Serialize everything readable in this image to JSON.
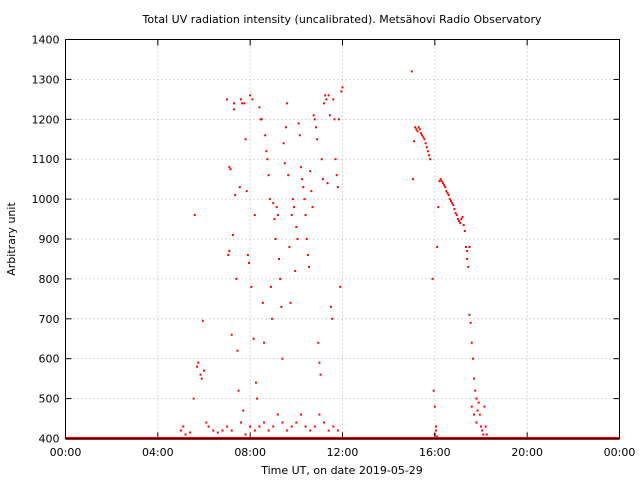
{
  "chart_data": {
    "type": "scatter",
    "title": "Total UV radiation intensity (uncalibrated). Metsähovi Radio Observatory",
    "xlabel": "Time UT, on date 2019-05-29",
    "ylabel": "Arbitrary unit",
    "xlim": [
      0,
      24
    ],
    "ylim": [
      400,
      1400
    ],
    "x_ticks": [
      0,
      4,
      8,
      12,
      16,
      20,
      24
    ],
    "x_tick_labels": [
      "00:00",
      "04:00",
      "08:00",
      "12:00",
      "16:00",
      "20:00",
      "00:00"
    ],
    "y_ticks": [
      400,
      500,
      600,
      700,
      800,
      900,
      1000,
      1100,
      1200,
      1300,
      1400
    ],
    "y_tick_labels": [
      "400",
      "500",
      "600",
      "700",
      "800",
      "900",
      "1000",
      "1100",
      "1200",
      "1300",
      "1400"
    ],
    "grid": true,
    "point_color": "#ff0000",
    "baseline": {
      "y": 400,
      "x_start": 0,
      "x_end": 24
    },
    "points": [
      [
        5.0,
        420
      ],
      [
        5.1,
        430
      ],
      [
        5.2,
        410
      ],
      [
        5.4,
        415
      ],
      [
        5.55,
        500
      ],
      [
        5.6,
        960
      ],
      [
        5.7,
        580
      ],
      [
        5.75,
        590
      ],
      [
        5.85,
        560
      ],
      [
        5.9,
        550
      ],
      [
        5.95,
        695
      ],
      [
        6.0,
        570
      ],
      [
        6.1,
        440
      ],
      [
        6.2,
        430
      ],
      [
        6.4,
        420
      ],
      [
        6.6,
        415
      ],
      [
        6.8,
        420
      ],
      [
        7.0,
        1250
      ],
      [
        7.05,
        860
      ],
      [
        7.1,
        870
      ],
      [
        7.1,
        1080
      ],
      [
        7.15,
        1075
      ],
      [
        7.2,
        660
      ],
      [
        7.25,
        910
      ],
      [
        7.3,
        1240
      ],
      [
        7.3,
        1225
      ],
      [
        7.35,
        1010
      ],
      [
        7.4,
        800
      ],
      [
        7.45,
        620
      ],
      [
        7.5,
        520
      ],
      [
        7.55,
        1030
      ],
      [
        7.6,
        1250
      ],
      [
        7.65,
        1240
      ],
      [
        7.7,
        470
      ],
      [
        7.75,
        1240
      ],
      [
        7.8,
        1150
      ],
      [
        7.85,
        1020
      ],
      [
        7.9,
        860
      ],
      [
        7.95,
        840
      ],
      [
        8.0,
        1260
      ],
      [
        8.05,
        780
      ],
      [
        8.1,
        1250
      ],
      [
        8.15,
        650
      ],
      [
        8.2,
        960
      ],
      [
        8.25,
        540
      ],
      [
        8.3,
        500
      ],
      [
        8.4,
        1230
      ],
      [
        8.45,
        1200
      ],
      [
        8.5,
        1200
      ],
      [
        8.55,
        740
      ],
      [
        8.6,
        640
      ],
      [
        8.65,
        1160
      ],
      [
        8.7,
        1120
      ],
      [
        8.75,
        1100
      ],
      [
        8.8,
        1060
      ],
      [
        8.85,
        1000
      ],
      [
        8.9,
        780
      ],
      [
        8.95,
        700
      ],
      [
        9.0,
        990
      ],
      [
        9.05,
        950
      ],
      [
        9.1,
        900
      ],
      [
        9.15,
        980
      ],
      [
        9.2,
        960
      ],
      [
        9.25,
        850
      ],
      [
        9.3,
        800
      ],
      [
        9.35,
        730
      ],
      [
        9.4,
        600
      ],
      [
        9.45,
        1140
      ],
      [
        9.5,
        1090
      ],
      [
        9.55,
        1180
      ],
      [
        9.6,
        1240
      ],
      [
        9.65,
        1060
      ],
      [
        9.7,
        880
      ],
      [
        9.75,
        740
      ],
      [
        9.8,
        960
      ],
      [
        9.85,
        1000
      ],
      [
        9.9,
        980
      ],
      [
        9.95,
        820
      ],
      [
        10.0,
        930
      ],
      [
        10.05,
        900
      ],
      [
        10.1,
        1190
      ],
      [
        10.15,
        1160
      ],
      [
        10.2,
        1080
      ],
      [
        10.25,
        1050
      ],
      [
        10.3,
        1030
      ],
      [
        10.35,
        1000
      ],
      [
        10.4,
        960
      ],
      [
        10.45,
        900
      ],
      [
        10.5,
        860
      ],
      [
        10.55,
        830
      ],
      [
        10.6,
        1070
      ],
      [
        10.65,
        1020
      ],
      [
        10.7,
        980
      ],
      [
        10.75,
        1210
      ],
      [
        10.8,
        1200
      ],
      [
        10.85,
        1180
      ],
      [
        10.9,
        1150
      ],
      [
        10.95,
        640
      ],
      [
        11.0,
        590
      ],
      [
        11.05,
        560
      ],
      [
        11.1,
        1100
      ],
      [
        11.15,
        1050
      ],
      [
        11.2,
        1240
      ],
      [
        11.25,
        1260
      ],
      [
        11.3,
        1250
      ],
      [
        11.35,
        1040
      ],
      [
        11.4,
        1260
      ],
      [
        11.45,
        1210
      ],
      [
        11.5,
        730
      ],
      [
        11.55,
        700
      ],
      [
        11.6,
        1250
      ],
      [
        11.65,
        1200
      ],
      [
        11.7,
        1100
      ],
      [
        11.75,
        1060
      ],
      [
        11.8,
        1030
      ],
      [
        11.85,
        1200
      ],
      [
        11.9,
        780
      ],
      [
        11.95,
        1270
      ],
      [
        12.0,
        1280
      ],
      [
        7.0,
        430
      ],
      [
        7.2,
        420
      ],
      [
        7.6,
        440
      ],
      [
        7.8,
        410
      ],
      [
        8.0,
        430
      ],
      [
        8.2,
        420
      ],
      [
        8.4,
        430
      ],
      [
        8.6,
        440
      ],
      [
        8.8,
        420
      ],
      [
        9.0,
        430
      ],
      [
        9.2,
        460
      ],
      [
        9.4,
        440
      ],
      [
        9.6,
        420
      ],
      [
        9.8,
        430
      ],
      [
        10.0,
        440
      ],
      [
        10.2,
        460
      ],
      [
        10.4,
        430
      ],
      [
        10.6,
        420
      ],
      [
        10.8,
        430
      ],
      [
        11.0,
        460
      ],
      [
        11.2,
        440
      ],
      [
        11.4,
        420
      ],
      [
        11.6,
        430
      ],
      [
        11.8,
        420
      ],
      [
        15.0,
        1320
      ],
      [
        15.05,
        1050
      ],
      [
        15.1,
        1145
      ],
      [
        15.15,
        1180
      ],
      [
        15.2,
        1175
      ],
      [
        15.25,
        1170
      ],
      [
        15.3,
        1180
      ],
      [
        15.35,
        1175
      ],
      [
        15.4,
        1165
      ],
      [
        15.45,
        1160
      ],
      [
        15.5,
        1155
      ],
      [
        15.55,
        1150
      ],
      [
        15.6,
        1140
      ],
      [
        15.65,
        1130
      ],
      [
        15.7,
        1120
      ],
      [
        15.75,
        1110
      ],
      [
        15.8,
        1100
      ],
      [
        15.9,
        800
      ],
      [
        15.95,
        520
      ],
      [
        16.0,
        480
      ],
      [
        16.05,
        420
      ],
      [
        16.1,
        880
      ],
      [
        16.15,
        980
      ],
      [
        16.2,
        1045
      ],
      [
        16.25,
        1050
      ],
      [
        16.3,
        1045
      ],
      [
        16.35,
        1040
      ],
      [
        16.4,
        1035
      ],
      [
        16.45,
        1030
      ],
      [
        16.5,
        1020
      ],
      [
        16.55,
        1015
      ],
      [
        16.6,
        1010
      ],
      [
        16.65,
        1000
      ],
      [
        16.7,
        995
      ],
      [
        16.75,
        990
      ],
      [
        16.8,
        985
      ],
      [
        16.85,
        975
      ],
      [
        16.9,
        965
      ],
      [
        16.95,
        960
      ],
      [
        17.0,
        950
      ],
      [
        17.05,
        945
      ],
      [
        17.1,
        940
      ],
      [
        17.15,
        950
      ],
      [
        17.2,
        955
      ],
      [
        17.25,
        935
      ],
      [
        17.3,
        920
      ],
      [
        17.35,
        880
      ],
      [
        17.4,
        850
      ],
      [
        17.45,
        830
      ],
      [
        17.5,
        710
      ],
      [
        17.55,
        690
      ],
      [
        17.6,
        640
      ],
      [
        17.65,
        600
      ],
      [
        17.7,
        550
      ],
      [
        17.75,
        520
      ],
      [
        17.8,
        500
      ],
      [
        17.85,
        470
      ],
      [
        17.9,
        490
      ],
      [
        17.95,
        460
      ],
      [
        18.0,
        430
      ],
      [
        18.05,
        420
      ],
      [
        18.1,
        410
      ],
      [
        18.15,
        480
      ],
      [
        18.2,
        430
      ],
      [
        18.25,
        410
      ],
      [
        17.6,
        480
      ],
      [
        17.7,
        460
      ],
      [
        17.8,
        440
      ],
      [
        17.4,
        870
      ],
      [
        17.5,
        880
      ],
      [
        16.0,
        410
      ],
      [
        16.05,
        430
      ],
      [
        16.1,
        405
      ]
    ]
  }
}
